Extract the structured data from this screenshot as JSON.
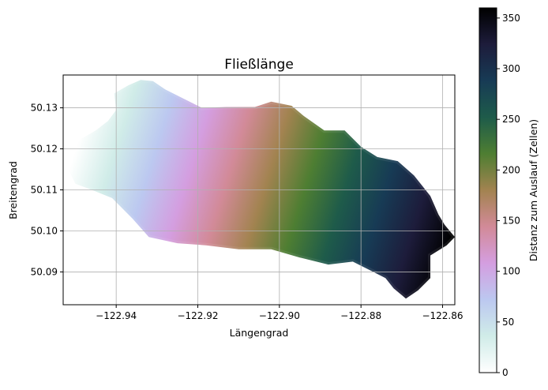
{
  "chart_data": {
    "type": "heatmap",
    "title": "Fließlänge",
    "xlabel": "Längengrad",
    "ylabel": "Breitengrad",
    "xlim": [
      -122.953,
      -122.857
    ],
    "ylim": [
      50.082,
      50.138
    ],
    "x_ticks": [
      -122.94,
      -122.92,
      -122.9,
      -122.88,
      -122.86
    ],
    "x_tick_labels": [
      "−122.94",
      "−122.92",
      "−122.90",
      "−122.88",
      "−122.86"
    ],
    "y_ticks": [
      50.09,
      50.1,
      50.11,
      50.12,
      50.13
    ],
    "y_tick_labels": [
      "50.09",
      "50.10",
      "50.11",
      "50.12",
      "50.13"
    ],
    "grid": true,
    "colormap": "cubehelix_r",
    "colorbar": {
      "label": "Distanz zum Auslauf (Zellen)",
      "range": [
        0,
        360
      ],
      "ticks": [
        0,
        50,
        100,
        150,
        200,
        250,
        300,
        350
      ],
      "tick_labels": [
        "0",
        "50",
        "100",
        "150",
        "200",
        "250",
        "300",
        "350"
      ],
      "stops": [
        {
          "value": 0,
          "color": "#ffffff"
        },
        {
          "value": 36,
          "color": "#d0ece8"
        },
        {
          "value": 72,
          "color": "#bcc8f0"
        },
        {
          "value": 108,
          "color": "#d49ee0"
        },
        {
          "value": 144,
          "color": "#d28a98"
        },
        {
          "value": 180,
          "color": "#a28350"
        },
        {
          "value": 216,
          "color": "#4e7e32"
        },
        {
          "value": 252,
          "color": "#1e5b4a"
        },
        {
          "value": 288,
          "color": "#173b55"
        },
        {
          "value": 324,
          "color": "#1d1c3b"
        },
        {
          "value": 360,
          "color": "#000000"
        }
      ]
    },
    "watershed": {
      "outline": [
        [
          -122.9525,
          50.1165
        ],
        [
          -122.9515,
          50.1195
        ],
        [
          -122.949,
          50.1222
        ],
        [
          -122.945,
          50.1245
        ],
        [
          -122.942,
          50.1268
        ],
        [
          -122.94,
          50.1295
        ],
        [
          -122.9405,
          50.1335
        ],
        [
          -122.937,
          50.1355
        ],
        [
          -122.934,
          50.1368
        ],
        [
          -122.931,
          50.1365
        ],
        [
          -122.928,
          50.1345
        ],
        [
          -122.924,
          50.1325
        ],
        [
          -122.919,
          50.13
        ],
        [
          -122.913,
          50.1302
        ],
        [
          -122.906,
          50.1302
        ],
        [
          -122.902,
          50.1315
        ],
        [
          -122.897,
          50.1305
        ],
        [
          -122.894,
          50.128
        ],
        [
          -122.889,
          50.1245
        ],
        [
          -122.884,
          50.1245
        ],
        [
          -122.88,
          50.1205
        ],
        [
          -122.876,
          50.118
        ],
        [
          -122.871,
          50.117
        ],
        [
          -122.867,
          50.1135
        ],
        [
          -122.863,
          50.1085
        ],
        [
          -122.861,
          50.104
        ],
        [
          -122.8595,
          50.1015
        ],
        [
          -122.857,
          50.0985
        ],
        [
          -122.859,
          50.0965
        ],
        [
          -122.863,
          50.094
        ],
        [
          -122.863,
          50.0885
        ],
        [
          -122.866,
          50.0855
        ],
        [
          -122.869,
          50.0835
        ],
        [
          -122.872,
          50.086
        ],
        [
          -122.874,
          50.0885
        ],
        [
          -122.877,
          50.09
        ],
        [
          -122.882,
          50.0925
        ],
        [
          -122.888,
          50.0918
        ],
        [
          -122.895,
          50.0935
        ],
        [
          -122.902,
          50.0955
        ],
        [
          -122.91,
          50.0955
        ],
        [
          -122.918,
          50.0965
        ],
        [
          -122.925,
          50.097
        ],
        [
          -122.932,
          50.0985
        ],
        [
          -122.936,
          50.103
        ],
        [
          -122.941,
          50.108
        ],
        [
          -122.946,
          50.11
        ],
        [
          -122.95,
          50.1115
        ]
      ],
      "gradient_axis": {
        "start": [
          -122.951,
          50.1165
        ],
        "end": [
          -122.861,
          50.0885
        ],
        "start_value": 0,
        "end_value": 360
      }
    }
  }
}
